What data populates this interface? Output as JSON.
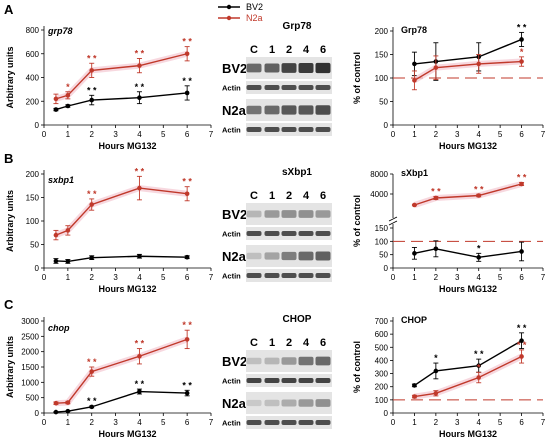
{
  "legend": [
    {
      "name": "BV2",
      "color": "#000000"
    },
    {
      "name": "N2a",
      "color": "#c0392b"
    }
  ],
  "colors": {
    "bv2": "#000000",
    "n2a": "#c0392b",
    "halo": "#f4c7d2",
    "control_line": "#c0392b"
  },
  "x_label": "Hours MG132",
  "y_label_left": "Arbitrary units",
  "y_label_right": "% of control",
  "chart_data": [
    {
      "id": "A-left",
      "panel": "A",
      "type": "line",
      "gene": "grp78",
      "xlabel": "Hours MG132",
      "ylabel": "Arbitrary units",
      "xlim": [
        0,
        7
      ],
      "ylim": [
        0,
        800
      ],
      "x_ticks": [
        0,
        1,
        2,
        3,
        4,
        5,
        6,
        7
      ],
      "y_ticks": [
        0,
        200,
        400,
        600,
        800
      ],
      "series": [
        {
          "name": "BV2",
          "x": [
            0.5,
            1,
            2,
            4,
            6
          ],
          "values": [
            130,
            160,
            210,
            230,
            270
          ],
          "errors": [
            10,
            10,
            40,
            50,
            60
          ],
          "sig": [
            "",
            "",
            "* *",
            "* *",
            "* *"
          ]
        },
        {
          "name": "N2a",
          "x": [
            0.5,
            1,
            2,
            4,
            6
          ],
          "values": [
            220,
            250,
            460,
            500,
            600
          ],
          "errors": [
            40,
            30,
            60,
            60,
            60
          ],
          "sig": [
            "",
            "*",
            "* *",
            "* *",
            "* *"
          ]
        }
      ]
    },
    {
      "id": "B-left",
      "panel": "B",
      "type": "line",
      "gene": "sxbp1",
      "xlabel": "Hours MG132",
      "ylabel": "Arbitrary units",
      "xlim": [
        0,
        7
      ],
      "ylim": [
        0,
        200
      ],
      "x_ticks": [
        0,
        1,
        2,
        3,
        4,
        5,
        6,
        7
      ],
      "y_ticks": [
        0,
        50,
        100,
        150,
        200
      ],
      "series": [
        {
          "name": "BV2",
          "x": [
            0.5,
            1,
            2,
            4,
            6
          ],
          "values": [
            15,
            14,
            22,
            25,
            23
          ],
          "errors": [
            5,
            4,
            4,
            4,
            3
          ],
          "sig": [
            "",
            "",
            "",
            "",
            ""
          ]
        },
        {
          "name": "N2a",
          "x": [
            0.5,
            1,
            2,
            4,
            6
          ],
          "values": [
            70,
            80,
            135,
            170,
            158
          ],
          "errors": [
            10,
            10,
            12,
            25,
            15
          ],
          "sig": [
            "",
            "",
            "* *",
            "* *",
            "* *"
          ]
        }
      ]
    },
    {
      "id": "C-left",
      "panel": "C",
      "type": "line",
      "gene": "chop",
      "xlabel": "Hours MG132",
      "ylabel": "Arbitrary units",
      "xlim": [
        0,
        7
      ],
      "ylim": [
        0,
        3000
      ],
      "x_ticks": [
        0,
        1,
        2,
        3,
        4,
        5,
        6,
        7
      ],
      "y_ticks": [
        0,
        500,
        1000,
        1500,
        2000,
        2500,
        3000
      ],
      "series": [
        {
          "name": "BV2",
          "x": [
            0.5,
            1,
            2,
            4,
            6
          ],
          "values": [
            30,
            60,
            200,
            700,
            650
          ],
          "errors": [
            10,
            10,
            30,
            80,
            90
          ],
          "sig": [
            "",
            "",
            "* *",
            "* *",
            "* *"
          ]
        },
        {
          "name": "N2a",
          "x": [
            0.5,
            1,
            2,
            4,
            6
          ],
          "values": [
            320,
            340,
            1350,
            1850,
            2400
          ],
          "errors": [
            40,
            40,
            150,
            250,
            300
          ],
          "sig": [
            "",
            "",
            "* *",
            "* *",
            "* *"
          ]
        }
      ]
    },
    {
      "id": "A-right",
      "panel": "A",
      "type": "line",
      "title": "Grp78",
      "xlabel": "Hours MG132",
      "ylabel": "% of control",
      "xlim": [
        0,
        7
      ],
      "ylim": [
        0,
        200
      ],
      "x_ticks": [
        0,
        1,
        2,
        3,
        4,
        5,
        6,
        7
      ],
      "y_ticks": [
        0,
        50,
        100,
        150,
        200
      ],
      "control_level": 100,
      "series": [
        {
          "name": "BV2",
          "x": [
            1,
            2,
            4,
            6
          ],
          "values": [
            130,
            135,
            145,
            182
          ],
          "errors": [
            25,
            40,
            30,
            15
          ],
          "sig": [
            "",
            "",
            "",
            "* *"
          ]
        },
        {
          "name": "N2a",
          "x": [
            1,
            2,
            4,
            6
          ],
          "values": [
            95,
            122,
            130,
            135
          ],
          "errors": [
            20,
            25,
            20,
            10
          ],
          "sig": [
            "",
            "",
            "",
            "*"
          ]
        }
      ]
    },
    {
      "id": "B-right",
      "panel": "B",
      "type": "line",
      "title": "sXbp1",
      "xlabel": "Hours MG132",
      "ylabel": "% of control",
      "xlim": [
        0,
        7
      ],
      "broken_axis": true,
      "upper_ylim": [
        0,
        8000
      ],
      "upper_ticks": [
        4000,
        8000
      ],
      "lower_ylim": [
        0,
        150
      ],
      "lower_ticks": [
        0,
        50,
        100,
        150
      ],
      "control_level": 100,
      "x_ticks": [
        0,
        1,
        2,
        3,
        4,
        5,
        6,
        7
      ],
      "series": [
        {
          "name": "BV2",
          "x": [
            1,
            2,
            4,
            6
          ],
          "values": [
            55,
            72,
            40,
            62
          ],
          "errors": [
            22,
            30,
            15,
            35
          ],
          "sig": [
            "",
            "",
            "*",
            ""
          ]
        },
        {
          "name": "N2a",
          "x": [
            1,
            2,
            4,
            6
          ],
          "values": [
            1800,
            3200,
            3700,
            6000
          ],
          "errors": [
            150,
            300,
            250,
            300
          ],
          "sig": [
            "",
            "* *",
            "* *",
            "* *"
          ]
        }
      ]
    },
    {
      "id": "C-right",
      "panel": "C",
      "type": "line",
      "title": "CHOP",
      "xlabel": "Hours MG132",
      "ylabel": "% of control",
      "xlim": [
        0,
        7
      ],
      "ylim": [
        0,
        700
      ],
      "x_ticks": [
        0,
        1,
        2,
        3,
        4,
        5,
        6,
        7
      ],
      "y_ticks": [
        0,
        100,
        200,
        300,
        400,
        500,
        600,
        700
      ],
      "control_level": 100,
      "series": [
        {
          "name": "BV2",
          "x": [
            1,
            2,
            4,
            6
          ],
          "values": [
            210,
            320,
            360,
            550
          ],
          "errors": [
            10,
            60,
            50,
            60
          ],
          "sig": [
            "",
            "*",
            "* *",
            "* *"
          ]
        },
        {
          "name": "N2a",
          "x": [
            1,
            2,
            4,
            6
          ],
          "values": [
            125,
            150,
            270,
            430
          ],
          "errors": [
            10,
            20,
            40,
            50
          ],
          "sig": [
            "",
            "",
            "*",
            "* *"
          ]
        }
      ]
    }
  ],
  "blots": [
    {
      "panel": "A",
      "title": "Grp78",
      "lanes": [
        "C",
        "1",
        "2",
        "4",
        "6"
      ],
      "rows": [
        "BV2",
        "Actin",
        "N2a",
        "Actin"
      ],
      "band_levels": [
        [
          0.55,
          0.6,
          0.75,
          0.8,
          0.85
        ],
        [
          0.7,
          0.7,
          0.7,
          0.7,
          0.7
        ],
        [
          0.5,
          0.55,
          0.65,
          0.65,
          0.7
        ],
        [
          0.7,
          0.7,
          0.7,
          0.7,
          0.7
        ]
      ]
    },
    {
      "panel": "B",
      "title": "sXbp1",
      "lanes": [
        "C",
        "1",
        "2",
        "4",
        "6"
      ],
      "rows": [
        "BV2",
        "Actin",
        "N2a",
        "Actin"
      ],
      "band_levels": [
        [
          0.15,
          0.3,
          0.35,
          0.35,
          0.3
        ],
        [
          0.7,
          0.7,
          0.7,
          0.7,
          0.7
        ],
        [
          0.1,
          0.25,
          0.45,
          0.55,
          0.6
        ],
        [
          0.7,
          0.7,
          0.7,
          0.7,
          0.7
        ]
      ]
    },
    {
      "panel": "C",
      "title": "CHOP",
      "lanes": [
        "C",
        "1",
        "2",
        "4",
        "6"
      ],
      "rows": [
        "BV2",
        "Actin",
        "N2a",
        "Actin"
      ],
      "band_levels": [
        [
          0.1,
          0.15,
          0.3,
          0.5,
          0.55
        ],
        [
          0.75,
          0.75,
          0.75,
          0.75,
          0.75
        ],
        [
          0.05,
          0.1,
          0.2,
          0.3,
          0.35
        ],
        [
          0.7,
          0.7,
          0.7,
          0.7,
          0.7
        ]
      ]
    }
  ]
}
